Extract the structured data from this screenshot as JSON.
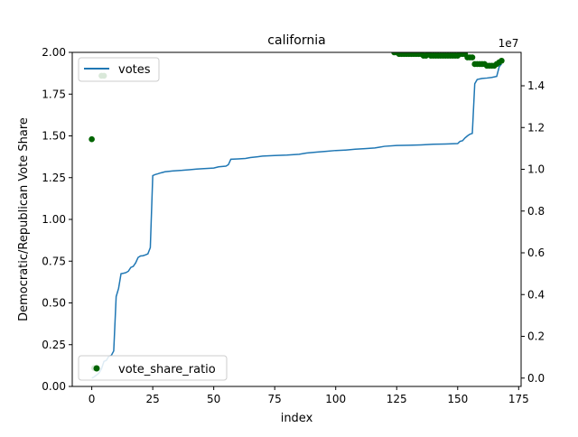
{
  "chart_data": {
    "type": "line",
    "title": "california",
    "xlabel": "index",
    "ylabel": "Democratic/Republican Vote Share",
    "y2label": "",
    "y2_offset_label": "1e7",
    "xlim": [
      -8,
      176
    ],
    "ylim": [
      0,
      2.0
    ],
    "y2lim": [
      -400000,
      15600000
    ],
    "xticks": [
      0,
      25,
      50,
      75,
      100,
      125,
      150,
      175
    ],
    "yticks": [
      0.0,
      0.25,
      0.5,
      0.75,
      1.0,
      1.25,
      1.5,
      1.75,
      2.0
    ],
    "y2ticks": [
      0.0,
      0.2,
      0.4,
      0.6,
      0.8,
      1.0,
      1.2,
      1.4
    ],
    "ytick_labels": [
      "0.00",
      "0.25",
      "0.50",
      "0.75",
      "1.00",
      "1.25",
      "1.50",
      "1.75",
      "2.00"
    ],
    "xtick_labels": [
      "0",
      "25",
      "50",
      "75",
      "100",
      "125",
      "150",
      "175"
    ],
    "y2tick_labels": [
      "0.0",
      "0.2",
      "0.4",
      "0.6",
      "0.8",
      "1.0",
      "1.2",
      "1.4"
    ],
    "legends": [
      {
        "label": "votes",
        "placement": "upper-left",
        "marker": "line",
        "color": "#1f77b4"
      },
      {
        "label": "vote_share_ratio",
        "placement": "lower-left",
        "marker": "dot",
        "color": "#006400"
      }
    ],
    "series": [
      {
        "name": "votes",
        "axis": "right",
        "color": "#1f77b4",
        "points": [
          [
            0,
            0
          ],
          [
            1,
            60000
          ],
          [
            2,
            150000
          ],
          [
            3,
            250000
          ],
          [
            4,
            450000
          ],
          [
            5,
            800000
          ],
          [
            6,
            850000
          ],
          [
            7,
            1050000
          ],
          [
            8,
            1080000
          ],
          [
            9,
            1300000
          ],
          [
            10,
            3900000
          ],
          [
            11,
            4300000
          ],
          [
            12,
            5000000
          ],
          [
            13,
            5020000
          ],
          [
            14,
            5050000
          ],
          [
            15,
            5120000
          ],
          [
            16,
            5300000
          ],
          [
            17,
            5350000
          ],
          [
            18,
            5520000
          ],
          [
            19,
            5780000
          ],
          [
            20,
            5850000
          ],
          [
            21,
            5860000
          ],
          [
            22,
            5900000
          ],
          [
            23,
            5950000
          ],
          [
            24,
            6250000
          ],
          [
            25,
            9700000
          ],
          [
            26,
            9750000
          ],
          [
            27,
            9780000
          ],
          [
            28,
            9820000
          ],
          [
            29,
            9850000
          ],
          [
            30,
            9880000
          ],
          [
            33,
            9920000
          ],
          [
            37,
            9950000
          ],
          [
            40,
            9980000
          ],
          [
            43,
            10010000
          ],
          [
            46,
            10030000
          ],
          [
            50,
            10060000
          ],
          [
            52,
            10120000
          ],
          [
            55,
            10150000
          ],
          [
            56,
            10220000
          ],
          [
            57,
            10480000
          ],
          [
            60,
            10500000
          ],
          [
            63,
            10520000
          ],
          [
            65,
            10560000
          ],
          [
            68,
            10600000
          ],
          [
            70,
            10630000
          ],
          [
            75,
            10660000
          ],
          [
            80,
            10680000
          ],
          [
            85,
            10720000
          ],
          [
            88,
            10780000
          ],
          [
            92,
            10820000
          ],
          [
            96,
            10860000
          ],
          [
            100,
            10900000
          ],
          [
            104,
            10920000
          ],
          [
            108,
            10960000
          ],
          [
            112,
            10990000
          ],
          [
            116,
            11020000
          ],
          [
            118,
            11060000
          ],
          [
            120,
            11100000
          ],
          [
            125,
            11140000
          ],
          [
            130,
            11150000
          ],
          [
            135,
            11170000
          ],
          [
            140,
            11200000
          ],
          [
            145,
            11210000
          ],
          [
            150,
            11230000
          ],
          [
            151,
            11340000
          ],
          [
            152,
            11370000
          ],
          [
            153,
            11500000
          ],
          [
            154,
            11600000
          ],
          [
            155,
            11680000
          ],
          [
            156,
            11720000
          ],
          [
            157,
            14100000
          ],
          [
            158,
            14300000
          ],
          [
            160,
            14350000
          ],
          [
            162,
            14370000
          ],
          [
            164,
            14400000
          ],
          [
            166,
            14450000
          ],
          [
            167,
            14900000
          ],
          [
            168,
            15050000
          ]
        ]
      },
      {
        "name": "vote_share_ratio",
        "axis": "left",
        "color": "#006400",
        "points": [
          [
            0,
            1.48
          ],
          [
            1,
            0.11
          ],
          [
            4,
            1.86
          ],
          [
            5,
            1.86
          ],
          [
            124,
            2.0
          ],
          [
            125,
            2.0
          ],
          [
            126,
            1.99
          ],
          [
            127,
            1.99
          ],
          [
            128,
            1.99
          ],
          [
            129,
            1.99
          ],
          [
            130,
            1.99
          ],
          [
            131,
            1.99
          ],
          [
            132,
            1.99
          ],
          [
            133,
            1.99
          ],
          [
            134,
            1.99
          ],
          [
            135,
            1.99
          ],
          [
            136,
            1.98
          ],
          [
            137,
            1.98
          ],
          [
            138,
            1.99
          ],
          [
            139,
            1.98
          ],
          [
            140,
            1.98
          ],
          [
            141,
            1.98
          ],
          [
            142,
            1.98
          ],
          [
            143,
            1.98
          ],
          [
            144,
            1.98
          ],
          [
            145,
            1.98
          ],
          [
            146,
            1.98
          ],
          [
            147,
            1.98
          ],
          [
            148,
            1.98
          ],
          [
            149,
            1.98
          ],
          [
            150,
            1.98
          ],
          [
            151,
            1.99
          ],
          [
            152,
            1.99
          ],
          [
            153,
            1.99
          ],
          [
            154,
            1.97
          ],
          [
            155,
            1.97
          ],
          [
            156,
            1.97
          ],
          [
            157,
            1.93
          ],
          [
            158,
            1.93
          ],
          [
            159,
            1.93
          ],
          [
            160,
            1.93
          ],
          [
            161,
            1.93
          ],
          [
            162,
            1.92
          ],
          [
            163,
            1.92
          ],
          [
            164,
            1.92
          ],
          [
            165,
            1.92
          ],
          [
            166,
            1.93
          ],
          [
            167,
            1.94
          ],
          [
            168,
            1.95
          ]
        ]
      }
    ]
  }
}
